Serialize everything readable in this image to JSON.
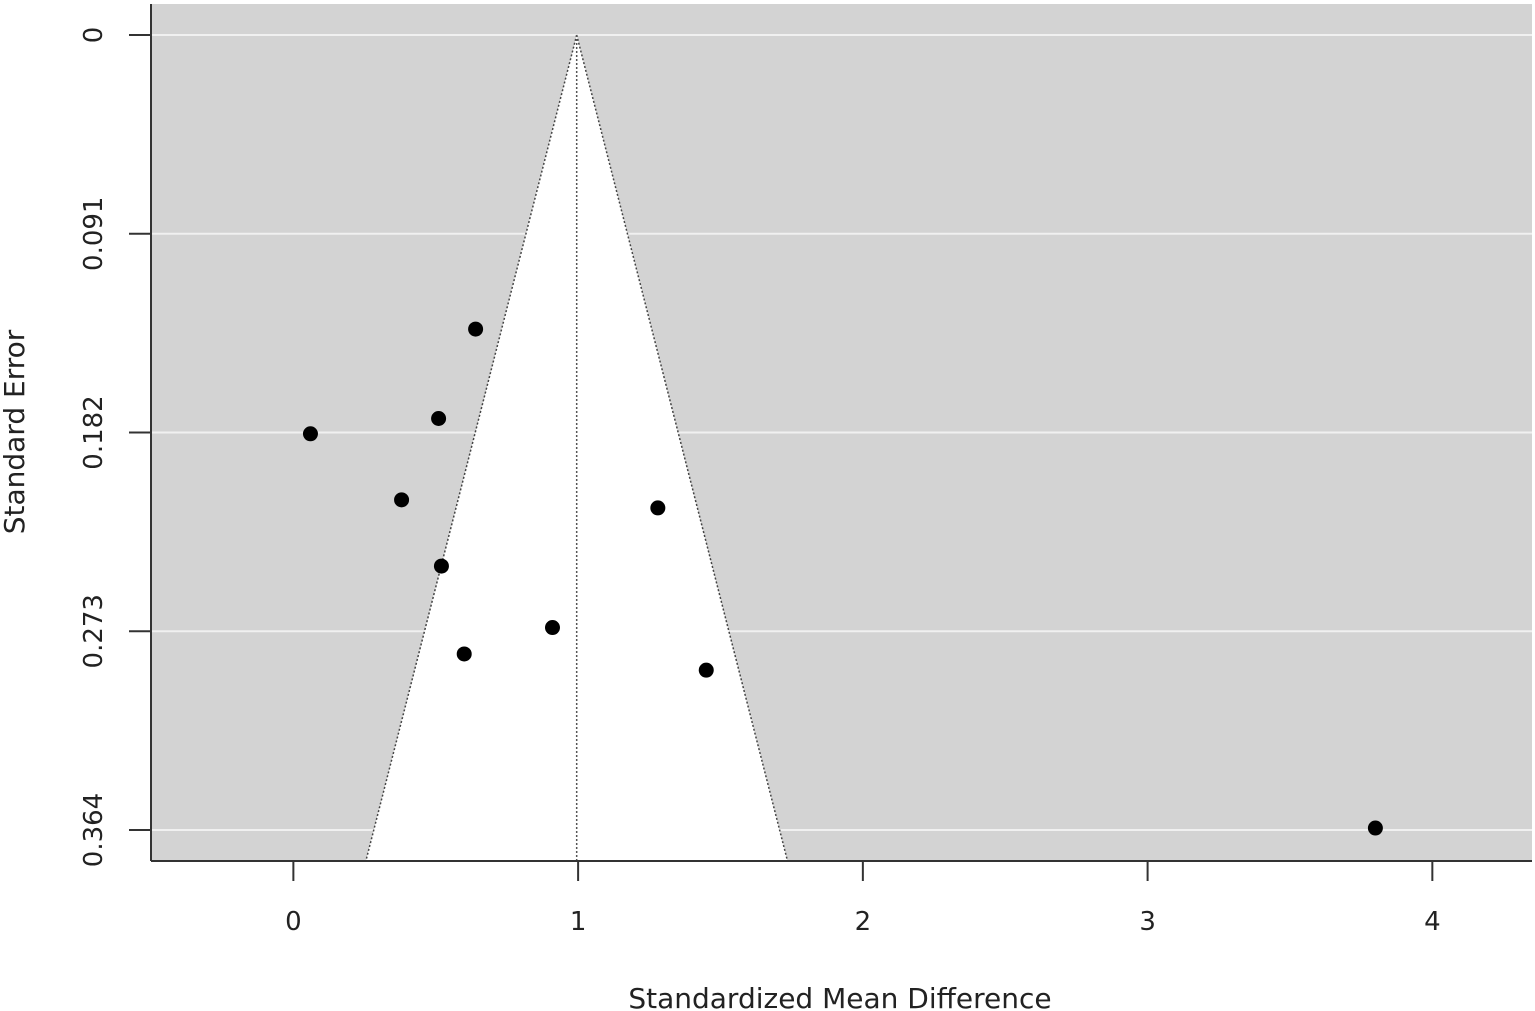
{
  "chart_data": {
    "type": "scatter",
    "subtype": "funnel",
    "title": "",
    "xlabel": "Standardized Mean Difference",
    "ylabel": "Standard Error",
    "xlim": [
      -0.5,
      4.35
    ],
    "ylim": [
      0.3636,
      0
    ],
    "y_reversed": true,
    "grid": "horizontal",
    "x_ticks": [
      0,
      1,
      2,
      3,
      4
    ],
    "x_tick_labels": [
      "0",
      "1",
      "2",
      "3",
      "4"
    ],
    "y_ticks": [
      0,
      0.0909,
      0.1818,
      0.2727,
      0.3636
    ],
    "y_tick_labels": [
      "0",
      "0.091",
      "0.182",
      "0.273",
      "0.364"
    ],
    "pooled_estimate": 0.995,
    "funnel_z": 1.96,
    "colors": {
      "panel": "#d3d3d3",
      "funnel_region": "#ffffff",
      "gridline": "#f0f0f0",
      "points": "#000000",
      "axes": "#333333"
    },
    "points": [
      {
        "x": 0.64,
        "y": 0.1345
      },
      {
        "x": 0.51,
        "y": 0.1754
      },
      {
        "x": 0.06,
        "y": 0.1824
      },
      {
        "x": 0.38,
        "y": 0.2126
      },
      {
        "x": 1.28,
        "y": 0.2163
      },
      {
        "x": 0.52,
        "y": 0.2429
      },
      {
        "x": 0.91,
        "y": 0.271
      },
      {
        "x": 0.6,
        "y": 0.2831
      },
      {
        "x": 1.45,
        "y": 0.2905
      },
      {
        "x": 3.8,
        "y": 0.3627
      }
    ]
  }
}
